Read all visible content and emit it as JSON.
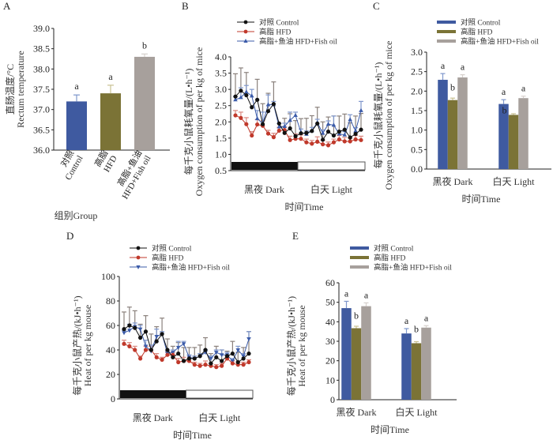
{
  "figure": {
    "panels": [
      "A",
      "B",
      "C",
      "D",
      "E"
    ]
  },
  "chart_data": [
    {
      "id": "A",
      "type": "bar",
      "panel_label": "A",
      "title": "",
      "xlabel": "组别Group",
      "ylabel_cn": "直肠温度/°C",
      "ylabel_en": "Rectum temperature",
      "ylim": [
        36.0,
        39.0
      ],
      "yticks": [
        "36.0",
        "36.5",
        "37.0",
        "37.5",
        "38.0",
        "38.5",
        "39.0"
      ],
      "ytick_values": [
        36.0,
        36.5,
        37.0,
        37.5,
        38.0,
        38.5,
        39.0
      ],
      "categories": [
        {
          "cn": "对照",
          "en": "Control"
        },
        {
          "cn": "高脂",
          "en": "HFD"
        },
        {
          "cn": "高脂+鱼油",
          "en": "HFD+Fish oil"
        }
      ],
      "values": [
        37.2,
        37.4,
        38.3
      ],
      "errors": [
        0.16,
        0.2,
        0.07
      ],
      "significance": [
        "a",
        "a",
        "b"
      ],
      "colors": [
        "#3f5aa0",
        "#7b7336",
        "#a7a09c"
      ],
      "error_colors": [
        "#7f97cc",
        "#c9c192",
        "#d6d0cc"
      ]
    },
    {
      "id": "B",
      "type": "line",
      "panel_label": "B",
      "xlabel": "时间Time",
      "ylabel_cn": "每千克小鼠耗氧量/(L•h⁻¹)",
      "ylabel_en": "Oxygen consumption of per kg of mice",
      "ylim": [
        0.5,
        4.0
      ],
      "yticks": [
        "0.5",
        "1.0",
        "1.5",
        "2.0",
        "2.5",
        "3.0",
        "3.5",
        "4.0"
      ],
      "ytick_values": [
        0.5,
        1.0,
        1.5,
        2.0,
        2.5,
        3.0,
        3.5,
        4.0
      ],
      "phase_labels": [
        "黑夜 Dark",
        "白天 Light"
      ],
      "phase_split": 0.5,
      "legend": [
        "对照 Control",
        "高脂 HFD",
        "高脂+鱼油 HFD+Fish oil"
      ],
      "series": [
        {
          "name": "对照 Control",
          "color": "#111111",
          "err_color": "#8a817c",
          "marker": "circle",
          "values": [
            2.78,
            2.96,
            2.82,
            2.45,
            2.68,
            1.93,
            2.33,
            2.55,
            1.95,
            1.66,
            1.8,
            1.56,
            1.65,
            1.66,
            1.72,
            1.95,
            1.45,
            1.7,
            1.58,
            1.7,
            1.76,
            1.52,
            1.63,
            1.76
          ],
          "errors": [
            0.7,
            0.7,
            0.7,
            0.0,
            0.63,
            0.63,
            0.55,
            0.68,
            0.0,
            0.45,
            0.45,
            0.48,
            0.45,
            0.45,
            0.47,
            0.5,
            0.55,
            0.45,
            0.6,
            0.48,
            0.48,
            0.45,
            0.55,
            0.5
          ]
        },
        {
          "name": "高脂 HFD",
          "color": "#c0392b",
          "err_color": "#d98880",
          "marker": "circle",
          "values": [
            2.2,
            2.12,
            1.93,
            1.58,
            1.92,
            1.88,
            1.64,
            1.53,
            1.73,
            1.75,
            1.44,
            1.48,
            1.48,
            1.37,
            1.33,
            1.39,
            1.31,
            1.28,
            1.37,
            1.46,
            1.4,
            1.4,
            1.46,
            1.44
          ],
          "errors": [
            0.15,
            0.18,
            0.2,
            0.12,
            0.15,
            0.15,
            0.1,
            0.12,
            0.1,
            0.1,
            0.12,
            0.15,
            0.12,
            0.1,
            0.1,
            0.15,
            0.12,
            0.1,
            0.1,
            0.12,
            0.12,
            0.1,
            0.12,
            0.12
          ]
        },
        {
          "name": "高脂+鱼油 HFD+Fish oil",
          "color": "#3b5ba9",
          "err_color": "#7f97cc",
          "marker": "triangle",
          "values": [
            2.68,
            2.75,
            2.92,
            2.8,
            2.1,
            1.95,
            2.53,
            2.53,
            1.85,
            1.86,
            2.05,
            2.2,
            1.68,
            1.62,
            1.73,
            1.98,
            1.65,
            1.93,
            1.9,
            1.63,
            1.6,
            2.07,
            1.72,
            2.35
          ],
          "errors": [
            0.1,
            0.3,
            0.2,
            0.2,
            0.25,
            0.35,
            0.3,
            0.1,
            0.1,
            0.1,
            0.25,
            0.1,
            0.1,
            0.1,
            0.1,
            0.1,
            0.1,
            0.1,
            0.28,
            0.1,
            0.1,
            0.15,
            0.1,
            0.28
          ]
        }
      ]
    },
    {
      "id": "C",
      "type": "bar",
      "panel_label": "C",
      "xlabel": "时间Time",
      "ylabel_cn": "每千克小鼠耗氧量/(L•h⁻¹)",
      "ylabel_en": "Oxygen consumption of per kg of mice",
      "ylim": [
        0.0,
        3.0
      ],
      "yticks": [
        "0.0",
        "0.5",
        "1.0",
        "1.5",
        "2.0",
        "2.5",
        "3.0"
      ],
      "ytick_values": [
        0.0,
        0.5,
        1.0,
        1.5,
        2.0,
        2.5,
        3.0
      ],
      "categories": [
        "黑夜 Dark",
        "白天 Light"
      ],
      "legend": [
        "对照 Control",
        "高脂 HFD",
        "高脂+鱼油 HFD+Fish oil"
      ],
      "series": [
        {
          "name": "对照 Control",
          "color": "#3f5aa0",
          "err_color": "#7f97cc",
          "values": [
            2.29,
            1.67
          ],
          "errors": [
            0.16,
            0.11
          ],
          "significance": [
            "a",
            "a"
          ]
        },
        {
          "name": "高脂 HFD",
          "color": "#7b7336",
          "err_color": "#c9c192",
          "values": [
            1.77,
            1.39
          ],
          "errors": [
            0.05,
            0.03
          ],
          "significance": [
            "b",
            "b"
          ]
        },
        {
          "name": "高脂+鱼油 HFD+Fish oil",
          "color": "#a7a09c",
          "err_color": "#d6d0cc",
          "values": [
            2.35,
            1.82
          ],
          "errors": [
            0.07,
            0.05
          ],
          "significance": [
            "a",
            "a"
          ]
        }
      ]
    },
    {
      "id": "D",
      "type": "line",
      "panel_label": "D",
      "xlabel": "时间Time",
      "ylabel_cn": "每千克小鼠产热/(kJ•h⁻¹)",
      "ylabel_en": "Heat of per kg mouse",
      "ylim": [
        0,
        100
      ],
      "yticks": [
        "0",
        "20",
        "40",
        "60",
        "80",
        "100"
      ],
      "ytick_values": [
        0,
        20,
        40,
        60,
        80,
        100
      ],
      "phase_labels": [
        "黑夜 Dark",
        "白天 Light"
      ],
      "phase_split": 0.5,
      "legend": [
        "对照 Control",
        "高脂 HFD",
        "高脂+鱼油 HFD+Fish oil"
      ],
      "series": [
        {
          "name": "对照 Control",
          "color": "#111111",
          "err_color": "#8a817c",
          "marker": "circle",
          "values": [
            57,
            60,
            58,
            50,
            55,
            40,
            47,
            53,
            40,
            34,
            37,
            31,
            33,
            33,
            35,
            40,
            29,
            34,
            31,
            35,
            37,
            30,
            33,
            37
          ],
          "errors": [
            14,
            15,
            14,
            11,
            13,
            13,
            12,
            13,
            9,
            9,
            9,
            11,
            9,
            9,
            9,
            10,
            8,
            9,
            9,
            4,
            10,
            8,
            9,
            18
          ],
          "errors_note": "approximate"
        },
        {
          "name": "高脂 HFD",
          "color": "#c0392b",
          "err_color": "#d98880",
          "marker": "circle",
          "values": [
            45,
            43,
            40,
            33,
            40,
            40,
            34,
            32,
            36,
            36,
            30,
            31,
            31,
            28,
            27,
            28,
            27,
            26,
            27,
            33,
            29,
            28,
            28,
            30
          ],
          "errors": [
            3,
            3,
            3,
            2,
            3,
            3,
            3,
            2,
            2,
            2,
            3,
            3,
            2,
            2,
            2,
            3,
            2,
            2,
            2,
            2,
            2,
            2,
            2,
            2
          ]
        },
        {
          "name": "高脂+鱼油 HFD+Fish oil",
          "color": "#3b5ba9",
          "err_color": "#7f97cc",
          "marker": "triangle-down",
          "values": [
            54,
            56,
            59,
            57,
            43,
            39,
            51,
            53,
            37,
            38,
            42,
            45,
            34,
            33,
            35,
            38,
            33,
            38,
            36,
            36,
            31,
            40,
            35,
            49
          ],
          "errors": [
            2,
            5,
            3,
            3,
            5,
            5,
            6,
            2,
            2,
            2,
            5,
            2,
            2,
            2,
            2,
            2,
            2,
            2,
            4,
            2,
            2,
            3,
            2,
            6
          ]
        }
      ]
    },
    {
      "id": "E",
      "type": "bar",
      "panel_label": "E",
      "xlabel": "时间Time",
      "ylabel_cn": "每千克小鼠产热/(kJ•h⁻¹)",
      "ylabel_en": "Heat of per kg mouse",
      "ylim": [
        0,
        60
      ],
      "yticks": [
        "0",
        "10",
        "20",
        "30",
        "40",
        "50",
        "60"
      ],
      "ytick_values": [
        0,
        10,
        20,
        30,
        40,
        50,
        60
      ],
      "categories": [
        "黑夜 Dark",
        "白天 Light"
      ],
      "legend": [
        "对照 Control",
        "高脂 HFD",
        "高脂+鱼油 HFD+Fish oil"
      ],
      "series": [
        {
          "name": "对照 Control",
          "color": "#3f5aa0",
          "err_color": "#7f97cc",
          "values": [
            47,
            34
          ],
          "errors": [
            3.5,
            2.5
          ],
          "significance": [
            "a",
            "a"
          ]
        },
        {
          "name": "高脂 HFD",
          "color": "#7b7336",
          "err_color": "#c9c192",
          "values": [
            36.7,
            29
          ],
          "errors": [
            1,
            0.8
          ],
          "significance": [
            "b",
            "b"
          ]
        },
        {
          "name": "高脂+鱼油 HFD+Fish oil",
          "color": "#a7a09c",
          "err_color": "#d6d0cc",
          "values": [
            48,
            37
          ],
          "errors": [
            1.7,
            1
          ],
          "significance": [
            "a",
            "a"
          ]
        }
      ]
    }
  ]
}
